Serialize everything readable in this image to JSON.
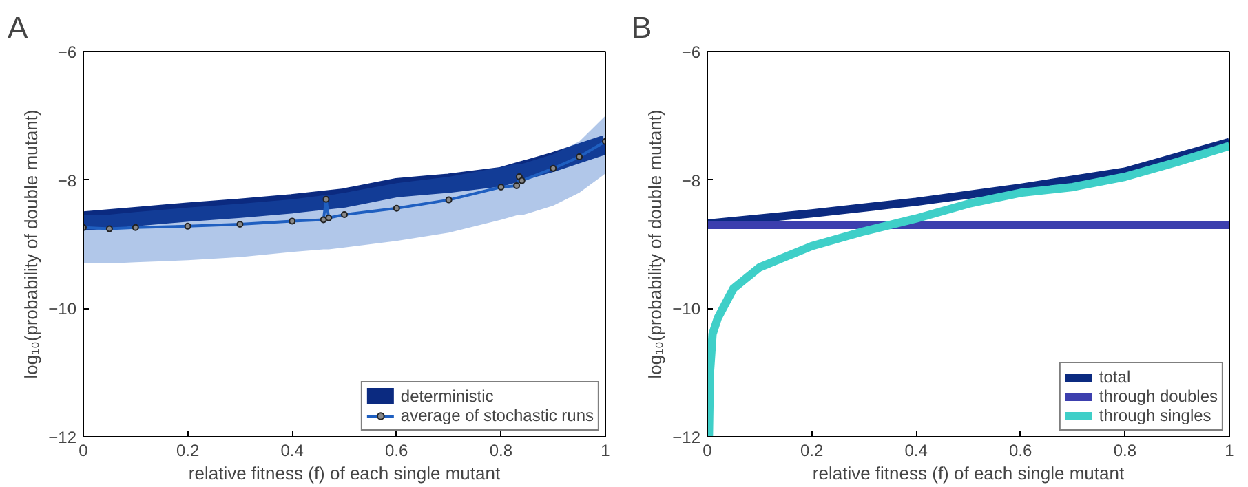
{
  "chart_data": [
    {
      "type": "line",
      "title": "A",
      "xlabel": "relative fitness (f) of each single mutant",
      "ylabel": "log₁₀(probability of double mutant)",
      "xlim": [
        0,
        1
      ],
      "ylim": [
        -12,
        -6
      ],
      "xticks": [
        0,
        0.2,
        0.4,
        0.6,
        0.8,
        1
      ],
      "yticks": [
        -12,
        -10,
        -8,
        -6
      ],
      "grid": false,
      "legend": "bottom right",
      "series": [
        {
          "name": "deterministic",
          "color": "#0b2a80",
          "x": [
            0,
            0.1,
            0.2,
            0.3,
            0.4,
            0.5,
            0.6,
            0.7,
            0.8,
            0.9,
            1
          ],
          "values": [
            -8.64,
            -8.57,
            -8.5,
            -8.44,
            -8.37,
            -8.28,
            -8.12,
            -8.05,
            -7.95,
            -7.72,
            -7.45
          ]
        },
        {
          "name": "average of stochastic runs",
          "color": "#1f5fc0",
          "marker": "circle",
          "x": [
            0,
            0.05,
            0.1,
            0.2,
            0.3,
            0.4,
            0.46,
            0.465,
            0.47,
            0.5,
            0.6,
            0.7,
            0.8,
            0.83,
            0.835,
            0.84,
            0.9,
            0.95,
            1
          ],
          "values": [
            -8.74,
            -8.76,
            -8.74,
            -8.72,
            -8.69,
            -8.64,
            -8.62,
            -8.3,
            -8.59,
            -8.54,
            -8.44,
            -8.31,
            -8.11,
            -8.09,
            -7.95,
            -8.01,
            -7.82,
            -7.64,
            -7.4
          ],
          "lower": [
            -9.3,
            -9.3,
            -9.28,
            -9.25,
            -9.2,
            -9.12,
            -9.08,
            -9.08,
            -9.08,
            -9.05,
            -8.95,
            -8.82,
            -8.62,
            -8.55,
            -8.55,
            -8.55,
            -8.4,
            -8.2,
            -7.9
          ],
          "upper": [
            -8.55,
            -8.54,
            -8.5,
            -8.43,
            -8.37,
            -8.3,
            -8.24,
            -8.24,
            -8.24,
            -8.2,
            -8.05,
            -7.95,
            -7.8,
            -7.75,
            -7.75,
            -7.75,
            -7.6,
            -7.4,
            -7.0
          ]
        }
      ]
    },
    {
      "type": "line",
      "title": "B",
      "xlabel": "relative fitness (f) of each single mutant",
      "ylabel": "log₁₀(probability of double mutant)",
      "xlim": [
        0,
        1
      ],
      "ylim": [
        -12,
        -6
      ],
      "xticks": [
        0,
        0.2,
        0.4,
        0.6,
        0.8,
        1
      ],
      "yticks": [
        -12,
        -10,
        -8,
        -6
      ],
      "grid": false,
      "legend": "bottom right",
      "series": [
        {
          "name": "total",
          "color": "#0b2a80",
          "x": [
            0,
            0.2,
            0.4,
            0.6,
            0.8,
            1
          ],
          "values": [
            -8.68,
            -8.52,
            -8.34,
            -8.12,
            -7.87,
            -7.41
          ]
        },
        {
          "name": "through doubles",
          "color": "#3c3fae",
          "x": [
            0,
            1
          ],
          "values": [
            -8.7,
            -8.7
          ]
        },
        {
          "name": "through singles",
          "color": "#3fcfc8",
          "x": [
            0.003,
            0.005,
            0.01,
            0.02,
            0.05,
            0.1,
            0.2,
            0.3,
            0.4,
            0.5,
            0.6,
            0.7,
            0.8,
            0.9,
            1
          ],
          "values": [
            -12,
            -11.0,
            -10.4,
            -10.15,
            -9.69,
            -9.36,
            -9.03,
            -8.8,
            -8.6,
            -8.37,
            -8.2,
            -8.11,
            -7.95,
            -7.72,
            -7.47
          ]
        }
      ]
    }
  ]
}
